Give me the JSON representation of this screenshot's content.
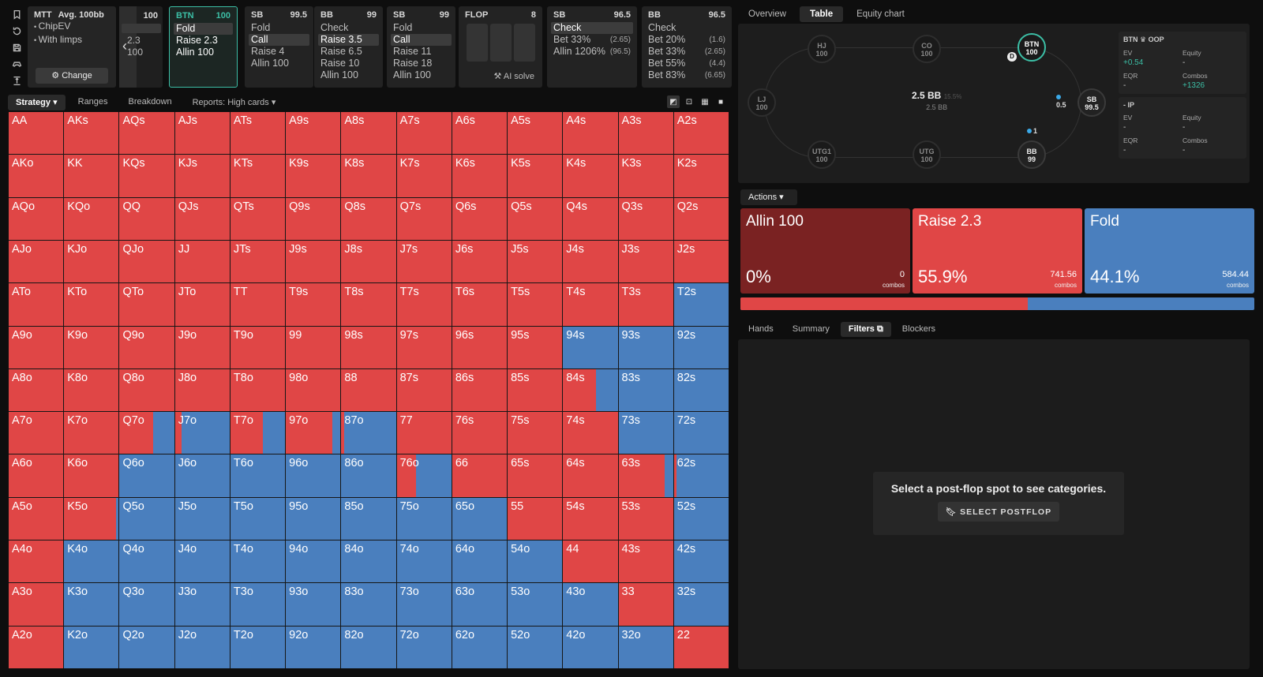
{
  "context": {
    "format": "MTT",
    "avg": "Avg. 100bb",
    "lines": [
      "ChipEV",
      "With limps"
    ],
    "change_label": "Change"
  },
  "nav": {
    "stack": "100",
    "r2": "2.3",
    "r3": "100"
  },
  "columns": [
    {
      "pos": "BTN",
      "stack": "100",
      "selected": true,
      "items": [
        {
          "t": "Fold",
          "on": true
        },
        {
          "t": "Raise 2.3",
          "wh": true
        },
        {
          "t": "Allin 100",
          "wh": true
        }
      ]
    },
    {
      "pos": "SB",
      "stack": "99.5",
      "items": [
        {
          "t": "Fold"
        },
        {
          "t": "Call",
          "on": true
        },
        {
          "t": "Raise 4"
        },
        {
          "t": "Allin 100"
        }
      ]
    },
    {
      "pos": "BB",
      "stack": "99",
      "items": [
        {
          "t": "Check"
        },
        {
          "t": "Raise 3.5",
          "on": true
        },
        {
          "t": "Raise 6.5"
        },
        {
          "t": "Raise 10"
        },
        {
          "t": "Allin 100"
        }
      ]
    },
    {
      "pos": "SB",
      "stack": "99",
      "items": [
        {
          "t": "Fold"
        },
        {
          "t": "Call",
          "on": true
        },
        {
          "t": "Raise 11"
        },
        {
          "t": "Raise 18"
        },
        {
          "t": "Allin 100"
        }
      ]
    }
  ],
  "flop": {
    "label": "FLOP",
    "count": "8",
    "ai": "AI solve"
  },
  "post_columns": [
    {
      "pos": "SB",
      "stack": "96.5",
      "items": [
        {
          "t": "Check",
          "on": true
        },
        {
          "t": "Bet 33%",
          "s": "(2.65)"
        },
        {
          "t": "Allin 1206%",
          "s": "(96.5)"
        }
      ]
    },
    {
      "pos": "BB",
      "stack": "96.5",
      "items": [
        {
          "t": "Check"
        },
        {
          "t": "Bet 20%",
          "s": "(1.6)"
        },
        {
          "t": "Bet 33%",
          "s": "(2.65)"
        },
        {
          "t": "Bet 55%",
          "s": "(4.4)"
        },
        {
          "t": "Bet 83%",
          "s": "(6.65)"
        }
      ]
    }
  ],
  "tabs": [
    "Strategy",
    "Ranges",
    "Breakdown",
    "Reports: High cards"
  ],
  "hands": [
    [
      "AA",
      "AKs",
      "AQs",
      "AJs",
      "ATs",
      "A9s",
      "A8s",
      "A7s",
      "A6s",
      "A5s",
      "A4s",
      "A3s",
      "A2s"
    ],
    [
      "AKo",
      "KK",
      "KQs",
      "KJs",
      "KTs",
      "K9s",
      "K8s",
      "K7s",
      "K6s",
      "K5s",
      "K4s",
      "K3s",
      "K2s"
    ],
    [
      "AQo",
      "KQo",
      "QQ",
      "QJs",
      "QTs",
      "Q9s",
      "Q8s",
      "Q7s",
      "Q6s",
      "Q5s",
      "Q4s",
      "Q3s",
      "Q2s"
    ],
    [
      "AJo",
      "KJo",
      "QJo",
      "JJ",
      "JTs",
      "J9s",
      "J8s",
      "J7s",
      "J6s",
      "J5s",
      "J4s",
      "J3s",
      "J2s"
    ],
    [
      "ATo",
      "KTo",
      "QTo",
      "JTo",
      "TT",
      "T9s",
      "T8s",
      "T7s",
      "T6s",
      "T5s",
      "T4s",
      "T3s",
      "T2s"
    ],
    [
      "A9o",
      "K9o",
      "Q9o",
      "J9o",
      "T9o",
      "99",
      "98s",
      "97s",
      "96s",
      "95s",
      "94s",
      "93s",
      "92s"
    ],
    [
      "A8o",
      "K8o",
      "Q8o",
      "J8o",
      "T8o",
      "98o",
      "88",
      "87s",
      "86s",
      "85s",
      "84s",
      "83s",
      "82s"
    ],
    [
      "A7o",
      "K7o",
      "Q7o",
      "J7o",
      "T7o",
      "97o",
      "87o",
      "77",
      "76s",
      "75s",
      "74s",
      "73s",
      "72s"
    ],
    [
      "A6o",
      "K6o",
      "Q6o",
      "J6o",
      "T6o",
      "96o",
      "86o",
      "76o",
      "66",
      "65s",
      "64s",
      "63s",
      "62s"
    ],
    [
      "A5o",
      "K5o",
      "Q5o",
      "J5o",
      "T5o",
      "95o",
      "85o",
      "75o",
      "65o",
      "55",
      "54s",
      "53s",
      "52s"
    ],
    [
      "A4o",
      "K4o",
      "Q4o",
      "J4o",
      "T4o",
      "94o",
      "84o",
      "74o",
      "64o",
      "54o",
      "44",
      "43s",
      "42s"
    ],
    [
      "A3o",
      "K3o",
      "Q3o",
      "J3o",
      "T3o",
      "93o",
      "83o",
      "73o",
      "63o",
      "53o",
      "43o",
      "33",
      "32s"
    ],
    [
      "A2o",
      "K2o",
      "Q2o",
      "J2o",
      "T2o",
      "92o",
      "82o",
      "72o",
      "62o",
      "52o",
      "42o",
      "32o",
      "22"
    ]
  ],
  "raise_freq": [
    [
      1,
      1,
      1,
      1,
      1,
      1,
      1,
      1,
      1,
      1,
      1,
      1,
      1
    ],
    [
      1,
      1,
      1,
      1,
      1,
      1,
      1,
      1,
      1,
      1,
      1,
      1,
      1
    ],
    [
      1,
      1,
      1,
      1,
      1,
      1,
      1,
      1,
      1,
      1,
      1,
      1,
      1
    ],
    [
      1,
      1,
      1,
      1,
      1,
      1,
      1,
      1,
      1,
      1,
      1,
      1,
      1
    ],
    [
      1,
      1,
      1,
      1,
      1,
      1,
      1,
      1,
      1,
      1,
      1,
      1,
      0
    ],
    [
      1,
      1,
      1,
      1,
      1,
      1,
      1,
      1,
      1,
      1,
      0,
      0,
      0
    ],
    [
      1,
      1,
      1,
      1,
      1,
      1,
      1,
      1,
      1,
      1,
      0.6,
      0,
      0
    ],
    [
      1,
      1,
      0.62,
      0.12,
      0.6,
      0.85,
      0.05,
      1,
      1,
      1,
      1,
      0,
      0
    ],
    [
      1,
      1,
      0,
      0,
      0,
      0,
      0,
      0.35,
      1,
      1,
      1,
      0.85,
      0.05
    ],
    [
      1,
      0.95,
      0,
      0,
      0,
      0,
      0,
      0,
      0,
      1,
      1,
      1,
      0
    ],
    [
      1,
      0,
      0,
      0,
      0,
      0,
      0,
      0,
      0,
      0,
      1,
      1,
      0
    ],
    [
      1,
      0,
      0,
      0,
      0,
      0,
      0,
      0,
      0,
      0,
      0,
      1,
      0
    ],
    [
      1,
      0,
      0,
      0,
      0,
      0,
      0,
      0,
      0,
      0,
      0,
      0,
      1
    ]
  ],
  "right_tabs": [
    "Overview",
    "Table",
    "Equity chart"
  ],
  "table": {
    "seats": {
      "hj": "HJ\n100",
      "co": "CO\n100",
      "btn": "BTN\n100",
      "lj": "LJ\n100",
      "sb": "SB\n99.5",
      "utg1": "UTG1\n100",
      "utg": "UTG\n100",
      "bb": "BB\n99"
    },
    "pot": "2.5 BB",
    "pot_pct": "15.5%",
    "pot_sub": "2.5 BB",
    "sb_chip": "0.5",
    "bb_chip": "1",
    "dealer": "D"
  },
  "stats": {
    "oop": {
      "title": "BTN ♛ OOP",
      "ev_label": "EV",
      "ev": "+0.54",
      "eq_label": "Equity",
      "eq": "-",
      "eqr_label": "EQR",
      "eqr": "-",
      "combos_label": "Combos",
      "combos": "+1326"
    },
    "ip": {
      "title": "- IP",
      "ev_label": "EV",
      "ev": "-",
      "eq_label": "Equity",
      "eq": "-",
      "eqr_label": "EQR",
      "eqr": "-",
      "combos_label": "Combos",
      "combos": "-"
    }
  },
  "actions_label": "Actions",
  "actions": [
    {
      "name": "Allin 100",
      "pct": "0%",
      "combos": "0",
      "color": "#7a2222"
    },
    {
      "name": "Raise 2.3",
      "pct": "55.9%",
      "combos": "741.56",
      "color": "#e04646"
    },
    {
      "name": "Fold",
      "pct": "44.1%",
      "combos": "584.44",
      "color": "#4a7fbe"
    }
  ],
  "combos_label": "combos",
  "raise_share": 0.559,
  "bottom_tabs": [
    "Hands",
    "Summary",
    "Filters",
    "Blockers"
  ],
  "message": "Select a post-flop spot to see categories.",
  "select_postflop": "SELECT POSTFLOP"
}
